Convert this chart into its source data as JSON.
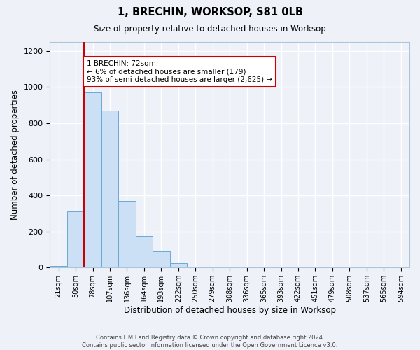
{
  "title": "1, BRECHIN, WORKSOP, S81 0LB",
  "subtitle": "Size of property relative to detached houses in Worksop",
  "xlabel": "Distribution of detached houses by size in Worksop",
  "ylabel": "Number of detached properties",
  "bar_color": "#cce0f5",
  "bar_edge_color": "#6aaad4",
  "bin_labels": [
    "21sqm",
    "50sqm",
    "78sqm",
    "107sqm",
    "136sqm",
    "164sqm",
    "193sqm",
    "222sqm",
    "250sqm",
    "279sqm",
    "308sqm",
    "336sqm",
    "365sqm",
    "393sqm",
    "422sqm",
    "451sqm",
    "479sqm",
    "508sqm",
    "537sqm",
    "565sqm",
    "594sqm"
  ],
  "bar_values": [
    10,
    310,
    970,
    870,
    370,
    175,
    90,
    25,
    5,
    0,
    0,
    5,
    0,
    0,
    0,
    5,
    0,
    0,
    0,
    0,
    0
  ],
  "vline_index": 2,
  "vline_color": "#cc0000",
  "annotation_title": "1 BRECHIN: 72sqm",
  "annotation_line1": "← 6% of detached houses are smaller (179)",
  "annotation_line2": "93% of semi-detached houses are larger (2,625) →",
  "annotation_box_color": "#ffffff",
  "annotation_box_edge": "#cc0000",
  "ylim": [
    0,
    1250
  ],
  "yticks": [
    0,
    200,
    400,
    600,
    800,
    1000,
    1200
  ],
  "footer_line1": "Contains HM Land Registry data © Crown copyright and database right 2024.",
  "footer_line2": "Contains public sector information licensed under the Open Government Licence v3.0.",
  "background_color": "#eef2f8",
  "grid_color": "#ffffff"
}
